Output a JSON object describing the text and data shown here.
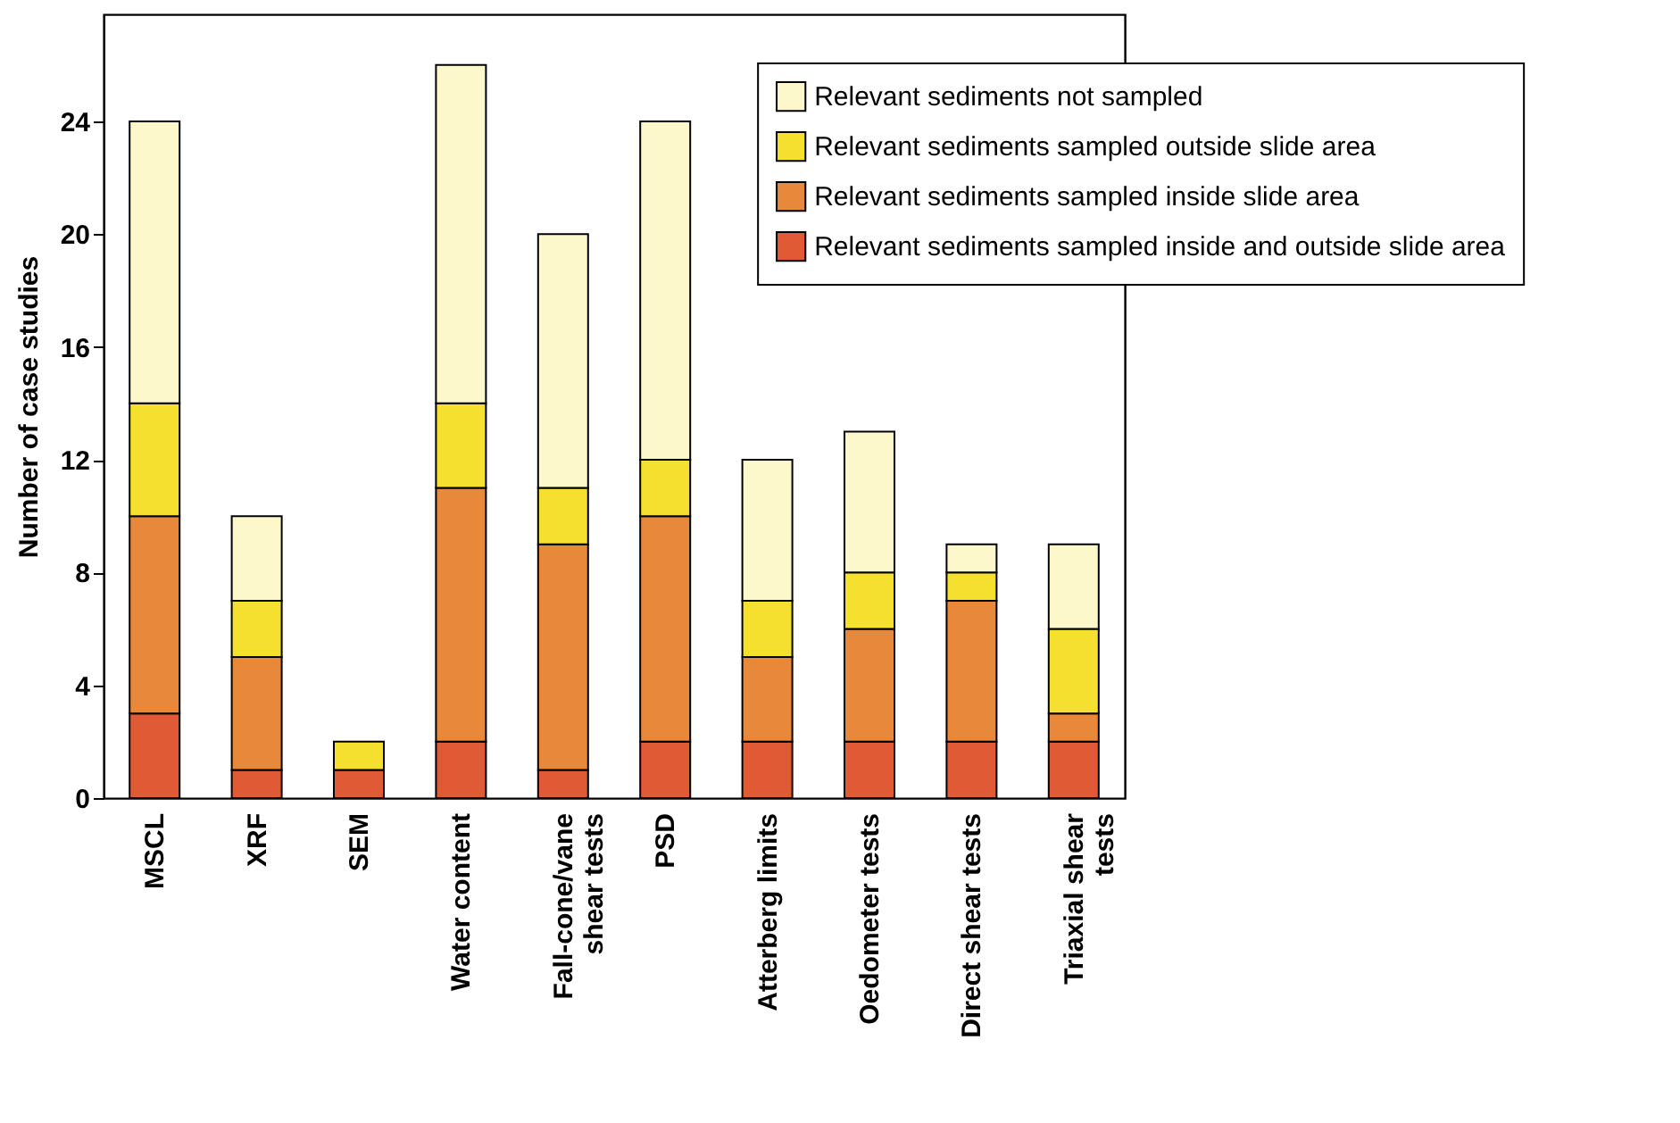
{
  "chart_data": {
    "type": "bar",
    "ylabel": "Number of case studies",
    "stacked": true,
    "legend": "top right",
    "categories": [
      "MSCL",
      "XRF",
      "SEM",
      "Water content",
      "Fall-cone/vane shear tests",
      "PSD",
      "Atterberg limits",
      "Oedometer tests",
      "Direct shear tests",
      "Triaxial shear tests"
    ],
    "series": [
      {
        "name": "Relevant sediments sampled inside and outside slide area",
        "color": "#e05a35",
        "values": [
          3,
          1,
          1,
          2,
          1,
          2,
          2,
          2,
          2,
          2
        ]
      },
      {
        "name": "Relevant sediments sampled inside slide area",
        "color": "#e8883a",
        "values": [
          7,
          4,
          0,
          9,
          8,
          8,
          3,
          4,
          5,
          1
        ]
      },
      {
        "name": "Relevant sediments sampled outside slide area",
        "color": "#f5e030",
        "values": [
          4,
          2,
          1,
          3,
          2,
          2,
          2,
          2,
          1,
          3
        ]
      },
      {
        "name": "Relevant sediments not sampled",
        "color": "#fdf8cc",
        "values": [
          10,
          3,
          0,
          12,
          9,
          12,
          5,
          5,
          1,
          3
        ]
      }
    ],
    "ylim": [
      0,
      27.8
    ],
    "yticks": [
      0,
      4,
      8,
      12,
      16,
      20,
      24
    ]
  }
}
